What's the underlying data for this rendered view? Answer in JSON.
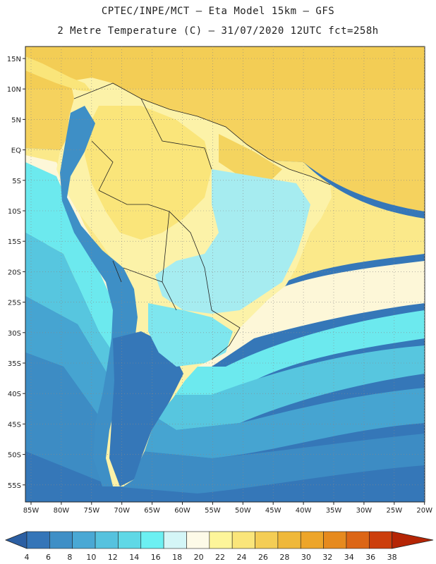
{
  "header": {
    "line1": "CPTEC/INPE/MCT –  Eta Model 15km – GFS",
    "line2": "2 Metre Temperature (C) – 31/07/2020 12UTC fct=258h"
  },
  "map": {
    "lat_labels": [
      "15N",
      "10N",
      "5N",
      "EQ",
      "5S",
      "10S",
      "15S",
      "20S",
      "25S",
      "30S",
      "35S",
      "40S",
      "45S",
      "50S",
      "55S"
    ],
    "lon_labels": [
      "85W",
      "80W",
      "75W",
      "70W",
      "65W",
      "60W",
      "55W",
      "50W",
      "45W",
      "40W",
      "35W",
      "30W",
      "25W",
      "20W"
    ]
  },
  "colorbar": {
    "labels": [
      "4",
      "6",
      "8",
      "10",
      "12",
      "14",
      "16",
      "18",
      "20",
      "22",
      "24",
      "26",
      "28",
      "30",
      "32",
      "34",
      "36",
      "38"
    ],
    "colors": [
      "#2c5fa3",
      "#3575b8",
      "#3f8fc6",
      "#4aa8d4",
      "#56c2de",
      "#5fd8e6",
      "#6cf0f2",
      "#d4f6f7",
      "#fdfae8",
      "#fdf59a",
      "#fae57a",
      "#f4cd55",
      "#efb83a",
      "#eda52a",
      "#e68a1e",
      "#dc6616",
      "#cc3e0c",
      "#b52505"
    ]
  }
}
